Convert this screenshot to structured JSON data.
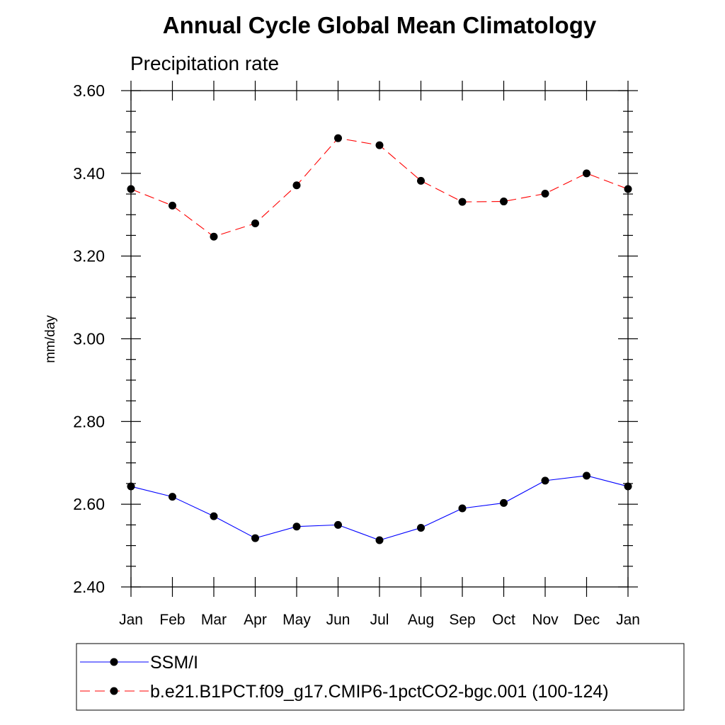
{
  "chart_data": {
    "type": "line",
    "title": "Annual Cycle Global Mean Climatology",
    "subtitle": "Precipitation rate",
    "ylabel": "mm/day",
    "xlabel": "",
    "categories": [
      "Jan",
      "Feb",
      "Mar",
      "Apr",
      "May",
      "Jun",
      "Jul",
      "Aug",
      "Sep",
      "Oct",
      "Nov",
      "Dec",
      "Jan"
    ],
    "ylim": [
      2.4,
      3.6
    ],
    "yticks": [
      "2.40",
      "2.60",
      "2.80",
      "3.00",
      "3.20",
      "3.40",
      "3.60"
    ],
    "grid": false,
    "legend_position": "bottom",
    "series": [
      {
        "name": "SSM/I",
        "color": "#0000ff",
        "dash": "solid",
        "marker": "filled-circle",
        "values": [
          2.643,
          2.618,
          2.571,
          2.518,
          2.546,
          2.55,
          2.513,
          2.543,
          2.59,
          2.603,
          2.657,
          2.669,
          2.643
        ]
      },
      {
        "name": "b.e21.B1PCT.f09_g17.CMIP6-1pctCO2-bgc.001 (100-124)",
        "color": "#ff0000",
        "dash": "dashed",
        "marker": "filled-circle",
        "values": [
          3.362,
          3.322,
          3.247,
          3.279,
          3.371,
          3.485,
          3.468,
          3.382,
          3.331,
          3.332,
          3.351,
          3.4,
          3.362
        ]
      }
    ]
  }
}
